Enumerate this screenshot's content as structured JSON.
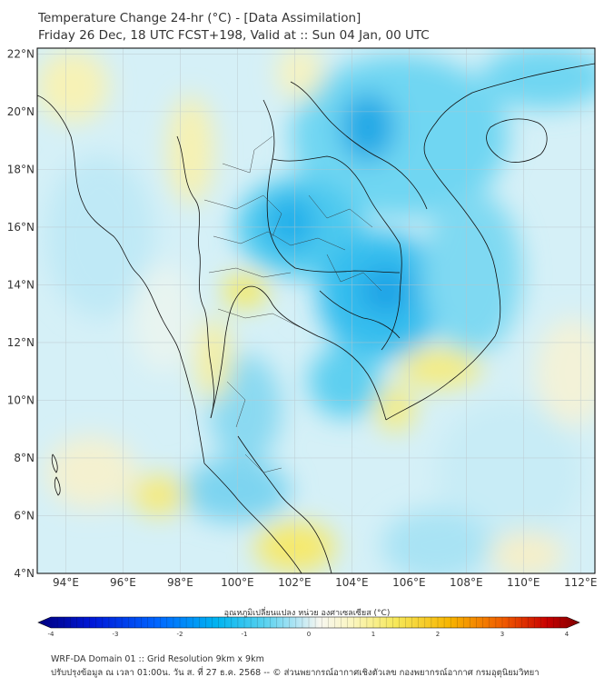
{
  "header": {
    "title": "Temperature Change 24-hr (°C) - [Data Assimilation]",
    "subtitle": "Friday 26 Dec, 18 UTC FCST+198, Valid at :: Sun 04 Jan, 00 UTC"
  },
  "map": {
    "lon_range": [
      93,
      112.5
    ],
    "lat_range": [
      4,
      22.2
    ],
    "lon_ticks": [
      "94°E",
      "96°E",
      "98°E",
      "100°E",
      "102°E",
      "104°E",
      "106°E",
      "108°E",
      "110°E",
      "112°E"
    ],
    "lat_ticks": [
      "4°N",
      "6°N",
      "8°N",
      "10°N",
      "12°N",
      "14°N",
      "16°N",
      "18°N",
      "20°N",
      "22°N"
    ],
    "gridlines": true
  },
  "colorbar": {
    "label": "อุณหภูมิเปลี่ยนแปลง หน่วย องศาเซลเซียส (°C)",
    "ticks": [
      "-4",
      "-3",
      "-2",
      "-1",
      "0",
      "1",
      "2",
      "3",
      "4"
    ],
    "colors": [
      "#00007f",
      "#0018d8",
      "#0066ff",
      "#00b4f0",
      "#5ad2ef",
      "#b7e6f4",
      "#f4f6f7",
      "#fbf6c0",
      "#f6e85a",
      "#f7b500",
      "#f05a00",
      "#c80000",
      "#7f0000"
    ]
  },
  "footer": {
    "line1": "WRF-DA Domain 01 :: Grid Resolution 9km x 9km",
    "line2": "ปรับปรุงข้อมูล ณ เวลา 01:00น. วัน ส. ที่ 27 ธ.ค. 2568 -- © ส่วนพยากรณ์อากาศเชิงตัวเลข กองพยากรณ์อากาศ กรมอุตุนิยมวิทยา"
  }
}
